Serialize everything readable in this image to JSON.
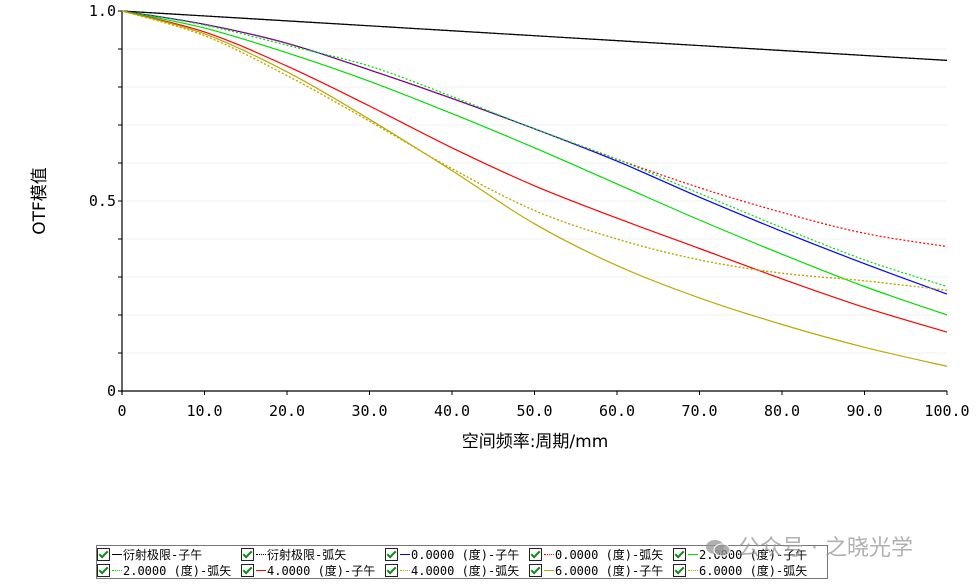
{
  "chart_data": {
    "type": "line",
    "title": "",
    "xlabel": "空间频率:周期/mm",
    "ylabel": "OTF模值",
    "xlim": [
      0,
      100
    ],
    "ylim": [
      0,
      1
    ],
    "x_ticks": [
      "0",
      "10.0",
      "20.0",
      "30.0",
      "40.0",
      "50.0",
      "60.0",
      "70.0",
      "80.0",
      "90.0",
      "100.0"
    ],
    "y_ticks": [
      "0",
      "0.5",
      "1.0"
    ],
    "x": [
      0,
      10,
      20,
      30,
      40,
      50,
      60,
      70,
      80,
      90,
      100
    ],
    "series": [
      {
        "name": "衍射极限-子午",
        "color": "#000000",
        "style": "solid",
        "values": [
          1.0,
          0.987,
          0.974,
          0.961,
          0.948,
          0.935,
          0.922,
          0.909,
          0.896,
          0.883,
          0.87
        ]
      },
      {
        "name": "衍射极限-弧矢",
        "color": "#000000",
        "style": "dotted",
        "values": [
          1.0,
          0.987,
          0.974,
          0.961,
          0.948,
          0.935,
          0.922,
          0.909,
          0.896,
          0.883,
          0.87
        ]
      },
      {
        "name": "0.0000 (度)-子午",
        "color": "#0000ff",
        "style": "solid",
        "values": [
          1.0,
          0.965,
          0.915,
          0.845,
          0.77,
          0.69,
          0.605,
          0.51,
          0.42,
          0.335,
          0.255
        ]
      },
      {
        "name": "0.0000 (度)-弧矢",
        "color": "#ff0000",
        "style": "dotted",
        "values": [
          1.0,
          0.965,
          0.915,
          0.845,
          0.77,
          0.69,
          0.61,
          0.535,
          0.47,
          0.415,
          0.38
        ]
      },
      {
        "name": "2.0000 (度)-子午",
        "color": "#00dd00",
        "style": "solid",
        "values": [
          1.0,
          0.955,
          0.89,
          0.815,
          0.73,
          0.64,
          0.545,
          0.45,
          0.36,
          0.275,
          0.2
        ]
      },
      {
        "name": "2.0000 (度)-弧矢",
        "color": "#00dd00",
        "style": "dotted",
        "values": [
          1.0,
          0.963,
          0.91,
          0.855,
          0.775,
          0.69,
          0.61,
          0.52,
          0.43,
          0.345,
          0.275
        ]
      },
      {
        "name": "4.0000 (度)-子午",
        "color": "#ff0000",
        "style": "solid",
        "values": [
          1.0,
          0.945,
          0.855,
          0.75,
          0.64,
          0.54,
          0.455,
          0.375,
          0.295,
          0.22,
          0.155
        ]
      },
      {
        "name": "4.0000 (度)-弧矢",
        "color": "#bbaa00",
        "style": "dotted",
        "values": [
          1.0,
          0.935,
          0.83,
          0.71,
          0.585,
          0.475,
          0.4,
          0.345,
          0.31,
          0.29,
          0.265
        ]
      },
      {
        "name": "6.0000 (度)-子午",
        "color": "#bbaa00",
        "style": "solid",
        "values": [
          1.0,
          0.94,
          0.84,
          0.715,
          0.58,
          0.44,
          0.33,
          0.245,
          0.175,
          0.115,
          0.065
        ]
      },
      {
        "name": "6.0000 (度)-弧矢",
        "color": "#bbaa00",
        "style": "dotted",
        "values": [
          1.0,
          0.935,
          0.83,
          0.71,
          0.585,
          0.475,
          0.4,
          0.345,
          0.31,
          0.29,
          0.265
        ]
      }
    ]
  },
  "legend": {
    "rows": [
      [
        {
          "label": "衍射极限-子午",
          "color": "#000000",
          "style": "solid"
        },
        {
          "label": "衍射极限-弧矢",
          "color": "#000000",
          "style": "dotted"
        },
        {
          "label": "0.0000 (度)-子午",
          "color": "#0000ff",
          "style": "solid"
        },
        {
          "label": "0.0000 (度)-弧矢",
          "color": "#ff0000",
          "style": "dotted"
        },
        {
          "label": "2.0000 (度)-子午",
          "color": "#00dd00",
          "style": "solid"
        }
      ],
      [
        {
          "label": "2.0000 (度)-弧矢",
          "color": "#00dd00",
          "style": "dotted"
        },
        {
          "label": "4.0000 (度)-子午",
          "color": "#ff0000",
          "style": "solid"
        },
        {
          "label": "4.0000 (度)-弧矢",
          "color": "#bbaa00",
          "style": "dotted"
        },
        {
          "label": "6.0000 (度)-子午",
          "color": "#bbaa00",
          "style": "solid"
        },
        {
          "label": "6.0000 (度)-弧矢",
          "color": "#bbaa00",
          "style": "dotted"
        }
      ]
    ]
  },
  "watermark": {
    "text": "公众号 · 之晓光学",
    "icon": "wechat-icon"
  }
}
